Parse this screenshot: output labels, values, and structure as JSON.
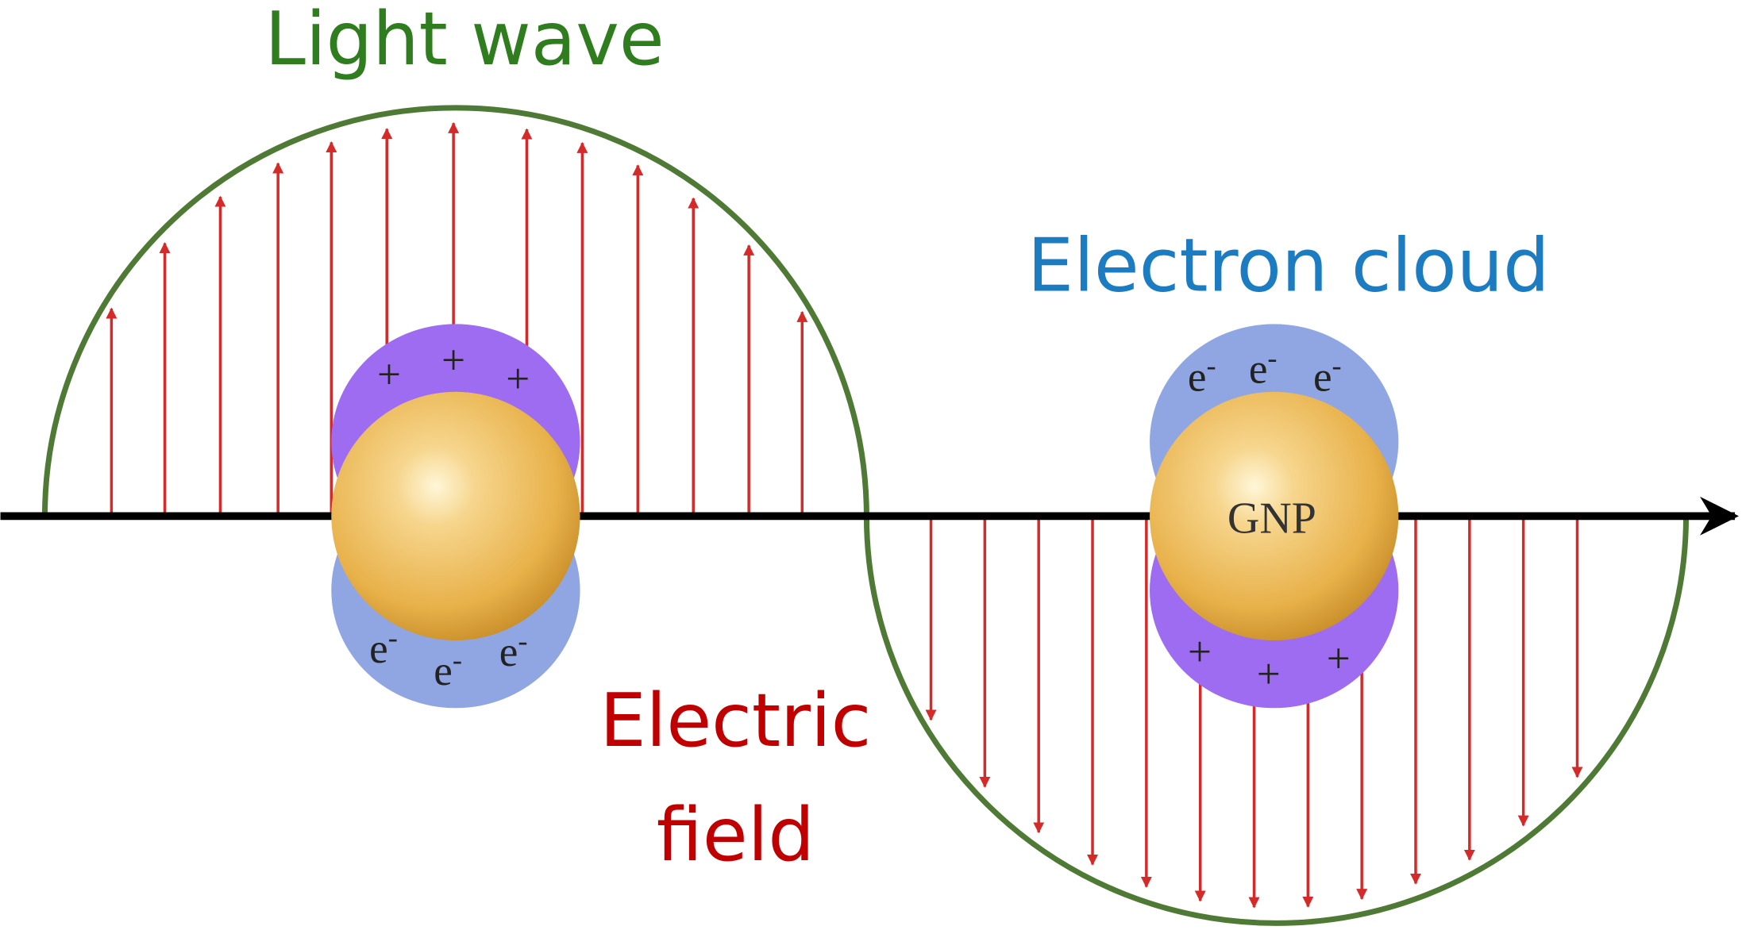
{
  "labels": {
    "light_wave": "Light wave",
    "electron_cloud": "Electron cloud",
    "electric_field": [
      "Electric",
      "field"
    ],
    "particle": "GNP"
  },
  "charges": {
    "positive": "+",
    "electron": "e",
    "electron_sign": "-"
  }
}
